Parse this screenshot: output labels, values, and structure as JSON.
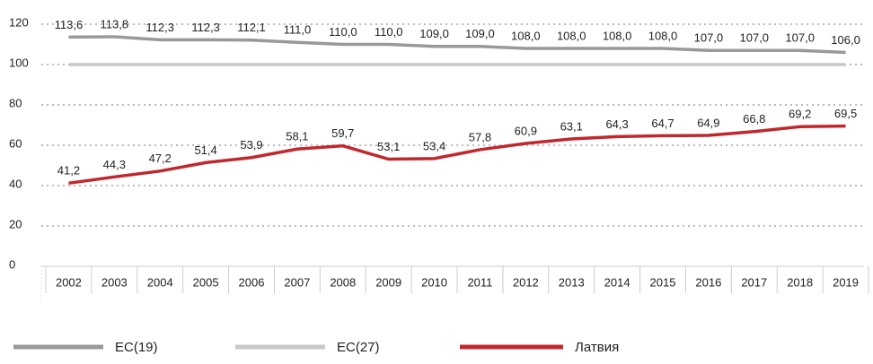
{
  "chart_data": {
    "type": "line",
    "categories": [
      "2002",
      "2003",
      "2004",
      "2005",
      "2006",
      "2007",
      "2008",
      "2009",
      "2010",
      "2011",
      "2012",
      "2013",
      "2014",
      "2015",
      "2016",
      "2017",
      "2018",
      "2019"
    ],
    "series": [
      {
        "name": "ЕС(19)",
        "color": "#999999",
        "values": [
          113.6,
          113.8,
          112.3,
          112.3,
          112.1,
          111.0,
          110.0,
          110.0,
          109.0,
          109.0,
          108.0,
          108.0,
          108.0,
          108.0,
          107.0,
          107.0,
          107.0,
          106.0
        ],
        "value_labels": [
          "113,6",
          "113,8",
          "112,3",
          "112,3",
          "112,1",
          "111,0",
          "110,0",
          "110,0",
          "109,0",
          "109,0",
          "108,0",
          "108,0",
          "108,0",
          "108,0",
          "107,0",
          "107,0",
          "107,0",
          "106,0"
        ]
      },
      {
        "name": "ЕС(27)",
        "color": "#c8c8c8",
        "values": [
          100,
          100,
          100,
          100,
          100,
          100,
          100,
          100,
          100,
          100,
          100,
          100,
          100,
          100,
          100,
          100,
          100,
          100
        ]
      },
      {
        "name": "Латвия",
        "color": "#c0282d",
        "values": [
          41.2,
          44.3,
          47.2,
          51.4,
          53.9,
          58.1,
          59.7,
          53.1,
          53.4,
          57.8,
          60.9,
          63.1,
          64.3,
          64.7,
          64.9,
          66.8,
          69.2,
          69.5
        ],
        "value_labels": [
          "41,2",
          "44,3",
          "47,2",
          "51,4",
          "53,9",
          "58,1",
          "59,7",
          "53,1",
          "53,4",
          "57,8",
          "60,9",
          "63,1",
          "64,3",
          "64,7",
          "64,9",
          "66,8",
          "69,2",
          "69,5"
        ]
      }
    ],
    "ylim": [
      0,
      120
    ],
    "yticks": [
      0,
      20,
      40,
      60,
      80,
      100,
      120
    ],
    "grid": true,
    "legend": "bottom"
  }
}
